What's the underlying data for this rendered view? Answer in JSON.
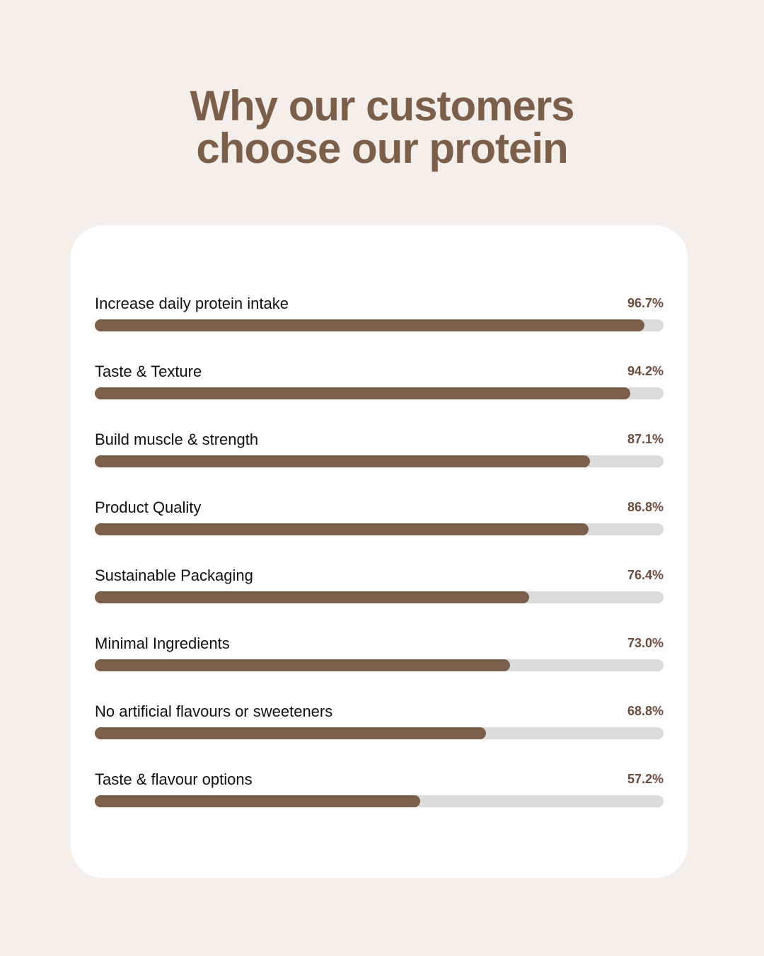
{
  "chart_data": {
    "type": "progress-bar",
    "title": "Why our customers choose our protein",
    "categories": [
      "Increase daily protein intake",
      "Taste & Texture",
      "Build muscle & strength",
      "Product Quality",
      "Sustainable Packaging",
      "Minimal Ingredients",
      "No artificial flavours or sweeteners",
      "Taste & flavour options"
    ],
    "values": [
      96.7,
      94.2,
      87.1,
      86.8,
      76.4,
      73.0,
      68.8,
      57.2
    ],
    "value_labels": [
      "96.7%",
      "94.2%",
      "87.1%",
      "86.8%",
      "76.4%",
      "73.0%",
      "68.8%",
      "57.2%"
    ],
    "xlim": [
      0,
      100
    ],
    "color": "#7b5f4b",
    "track_color": "#dcdcdc"
  }
}
